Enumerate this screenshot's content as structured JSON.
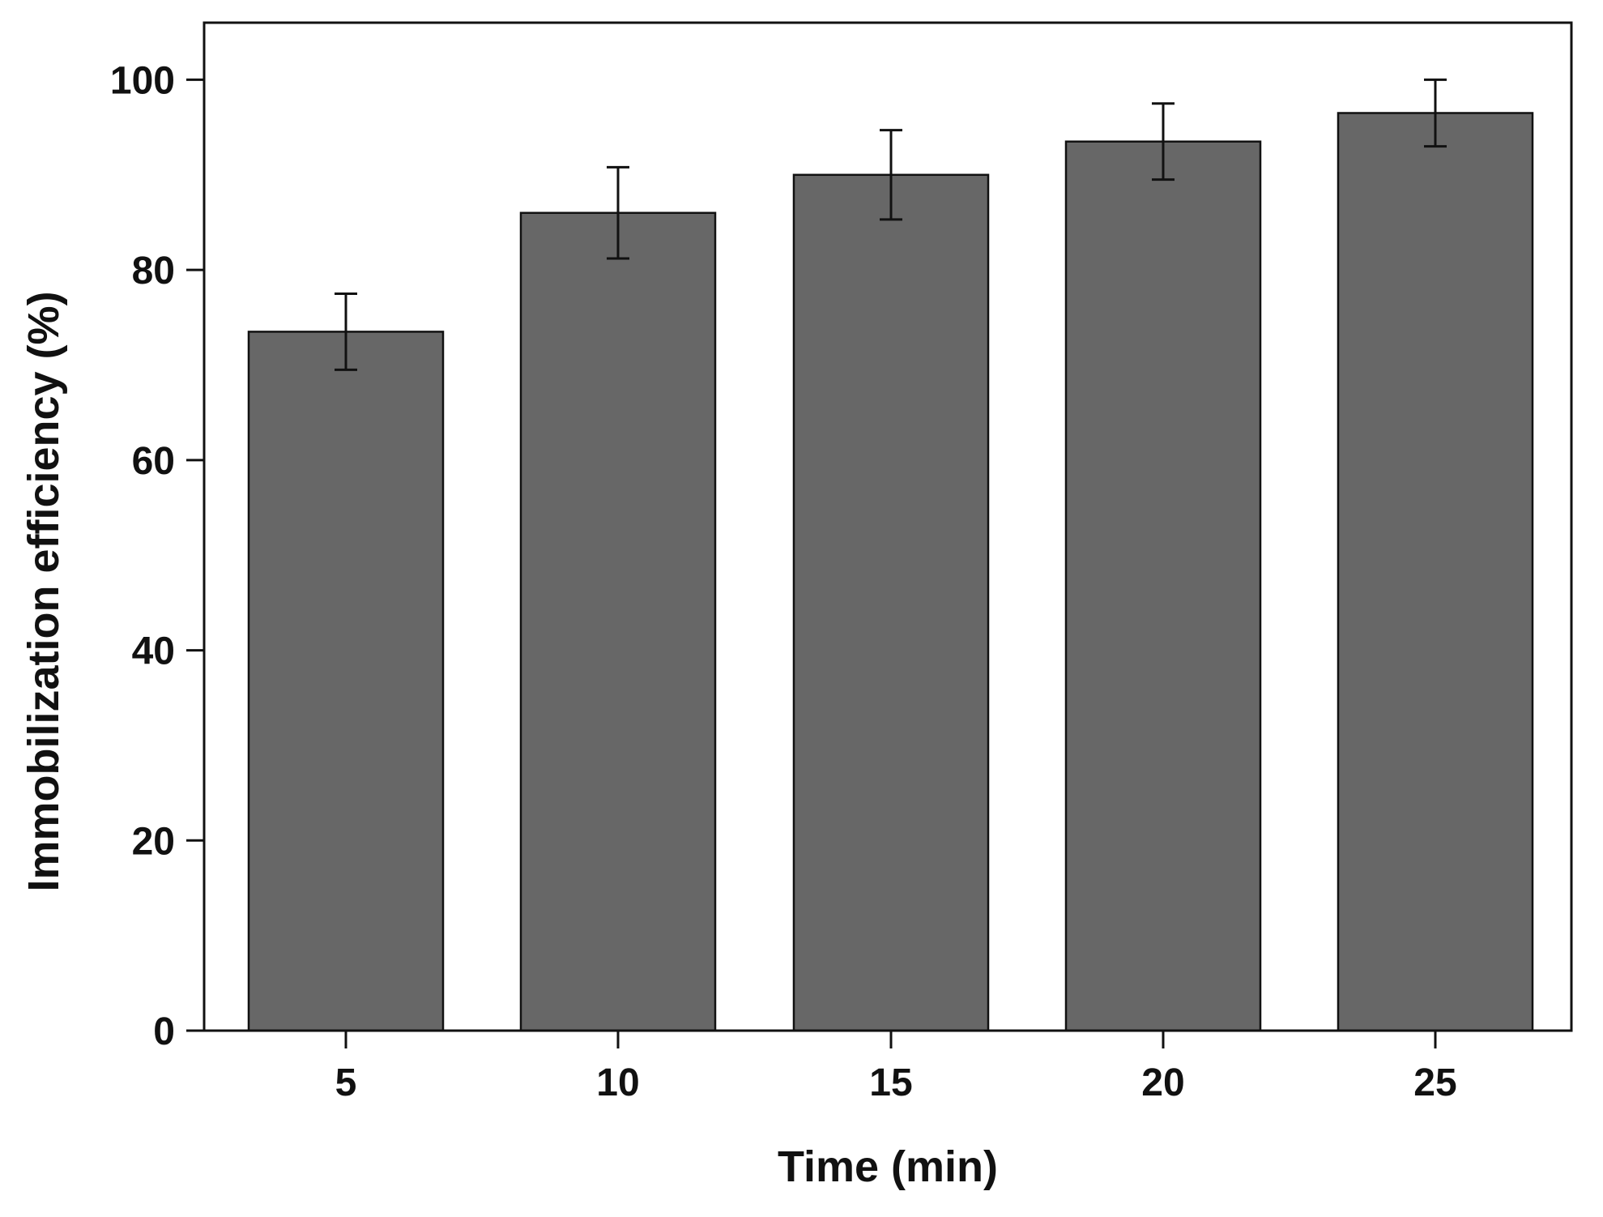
{
  "chart_data": {
    "type": "bar",
    "title": "",
    "xlabel": "Time (min)",
    "ylabel": "Immobilization efficiency (%)",
    "categories": [
      "5",
      "10",
      "15",
      "20",
      "25"
    ],
    "values": [
      73.5,
      86.0,
      90.0,
      93.5,
      96.5
    ],
    "error": [
      4.0,
      4.8,
      4.7,
      4.0,
      3.5
    ],
    "ylim": [
      0,
      106
    ],
    "yticks": [
      0,
      20,
      40,
      60,
      80,
      100
    ],
    "grid": false,
    "legend": "none",
    "colors": {
      "bar": "#676767",
      "bar_edge": "#111111",
      "axis": "#111111"
    }
  }
}
